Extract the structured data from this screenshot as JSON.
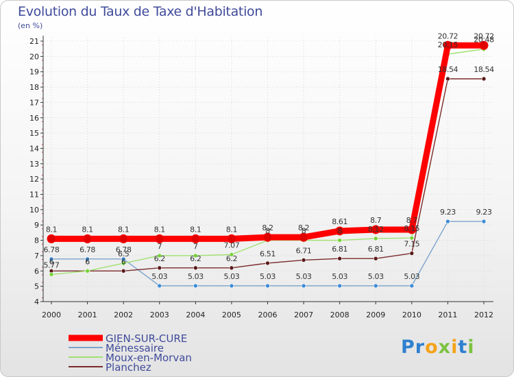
{
  "title": "Evolution du Taux de Taxe d'Habitation",
  "unit": "(en %)",
  "logo": "Proxiti",
  "chart_data": {
    "type": "line",
    "title": "Evolution du Taux de Taxe d'Habitation",
    "ylabel": "(en %)",
    "ylim": [
      4,
      21
    ],
    "yticks": [
      "4",
      "5",
      "6",
      "7",
      "8",
      "9",
      "10",
      "11",
      "12",
      "13",
      "14",
      "15",
      "16",
      "17",
      "18",
      "19",
      "20",
      "21"
    ],
    "categories": [
      "2000",
      "2001",
      "2002",
      "2003",
      "2004",
      "2005",
      "2006",
      "2007",
      "2008",
      "2009",
      "2010",
      "2011",
      "2012"
    ],
    "series": [
      {
        "name": "GIEN-SUR-CURE",
        "color": "#ff0000",
        "marker": "#e00000",
        "values": [
          8.1,
          8.1,
          8.1,
          8.1,
          8.1,
          8.1,
          8.2,
          8.2,
          8.61,
          8.7,
          8.7,
          20.72,
          20.72
        ],
        "labels": [
          "8.1",
          "8.1",
          "8.1",
          "8.1",
          "8.1",
          "8.1",
          "8.2",
          "8.2",
          "8.61",
          "8.7",
          "8.7",
          "20.72",
          "20.72"
        ]
      },
      {
        "name": "Ménessaire",
        "color": "#7ba3cc",
        "marker": "#3d8bd6",
        "values": [
          6.78,
          6.78,
          6.78,
          5.03,
          5.03,
          5.03,
          5.03,
          5.03,
          5.03,
          5.03,
          5.03,
          9.23,
          9.23
        ],
        "labels": [
          "6.78",
          "6.78",
          "6.78",
          "5.03",
          "5.03",
          "5.03",
          "5.03",
          "5.03",
          "5.03",
          "5.03",
          "5.03",
          "9.23",
          "9.23"
        ]
      },
      {
        "name": "Moux-en-Morvan",
        "color": "#9fe070",
        "marker": "#78d23a",
        "values": [
          5.77,
          6,
          6.5,
          7,
          7,
          7.07,
          8,
          8,
          8,
          8.12,
          8.15,
          20.15,
          20.48
        ],
        "labels": [
          "5.77",
          "6",
          "6.5",
          "7",
          "7",
          "7.07",
          "8",
          "8",
          "8",
          "8.12",
          "8.15",
          "20.15",
          "20.48"
        ]
      },
      {
        "name": "Planchez",
        "color": "#7a2a2a",
        "marker": "#5a1a1a",
        "values": [
          6,
          6,
          6,
          6.2,
          6.2,
          6.2,
          6.51,
          6.71,
          6.81,
          6.81,
          7.15,
          18.54,
          18.54
        ],
        "labels": [
          "6",
          "6",
          "6",
          "6.2",
          "6.2",
          "6.2",
          "6.51",
          "6.71",
          "6.81",
          "6.81",
          "7.15",
          "18.54",
          "18.54"
        ]
      }
    ]
  }
}
